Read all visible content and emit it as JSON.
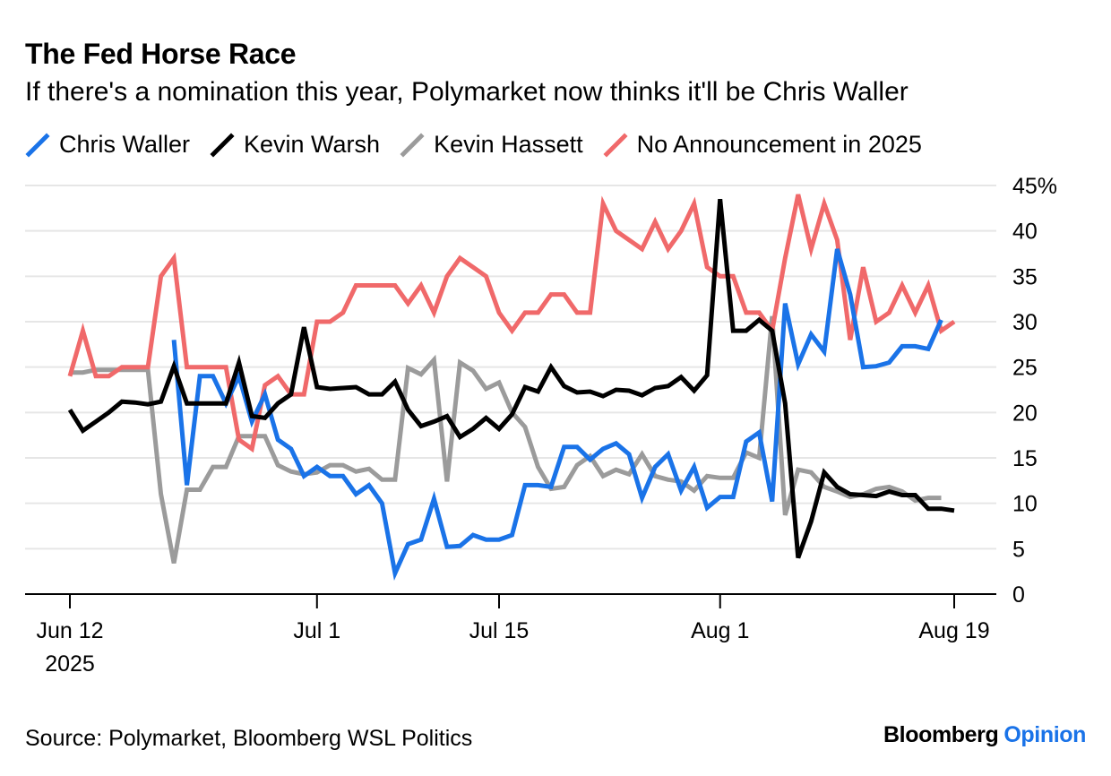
{
  "title": "The Fed Horse Race",
  "subtitle": "If there's a nomination this year, Polymarket now thinks it'll be Chris Waller",
  "source": "Source: Polymarket, Bloomberg WSL Politics",
  "brand": {
    "name": "Bloomberg",
    "section": "Opinion",
    "accent_color": "#1a73e8"
  },
  "chart_data": {
    "type": "line",
    "title": "The Fed Horse Race",
    "subtitle": "If there's a nomination this year, Polymarket now thinks it'll be Chris Waller",
    "xlabel": "",
    "ylabel": "",
    "ylim": [
      0,
      45
    ],
    "y_ticks": [
      {
        "value": 0,
        "label": "0"
      },
      {
        "value": 5,
        "label": "5"
      },
      {
        "value": 10,
        "label": "10"
      },
      {
        "value": 15,
        "label": "15"
      },
      {
        "value": 20,
        "label": "20"
      },
      {
        "value": 25,
        "label": "25"
      },
      {
        "value": 30,
        "label": "30"
      },
      {
        "value": 35,
        "label": "35"
      },
      {
        "value": 40,
        "label": "40"
      },
      {
        "value": 45,
        "label": "45%"
      }
    ],
    "y_axis_side": "right",
    "x_ticks": [
      {
        "label": "Jun 12",
        "label2": "2025",
        "date": "2025-06-12"
      },
      {
        "label": "Jul 1",
        "date": "2025-07-01"
      },
      {
        "label": "Jul 15",
        "date": "2025-07-15"
      },
      {
        "label": "Aug 1",
        "date": "2025-08-01"
      },
      {
        "label": "Aug 19",
        "date": "2025-08-19"
      }
    ],
    "x_range": [
      "2025-06-12",
      "2025-08-19"
    ],
    "grid": true,
    "legend_position": "top-left",
    "series": [
      {
        "name": "Chris Waller",
        "color": "#1a73e8",
        "points": [
          [
            "2025-06-20",
            28
          ],
          [
            "2025-06-21",
            12
          ],
          [
            "2025-06-22",
            24
          ],
          [
            "2025-06-23",
            24
          ],
          [
            "2025-06-24",
            21
          ],
          [
            "2025-06-25",
            24
          ],
          [
            "2025-06-26",
            19
          ],
          [
            "2025-06-27",
            22
          ],
          [
            "2025-06-28",
            17
          ],
          [
            "2025-06-29",
            16
          ],
          [
            "2025-06-30",
            13
          ],
          [
            "2025-07-01",
            14
          ],
          [
            "2025-07-02",
            13
          ],
          [
            "2025-07-03",
            13
          ],
          [
            "2025-07-04",
            11
          ],
          [
            "2025-07-05",
            12
          ],
          [
            "2025-07-06",
            10
          ],
          [
            "2025-07-07",
            2.3
          ],
          [
            "2025-07-08",
            5.5
          ],
          [
            "2025-07-09",
            6
          ],
          [
            "2025-07-10",
            10.5
          ],
          [
            "2025-07-11",
            5.2
          ],
          [
            "2025-07-12",
            5.3
          ],
          [
            "2025-07-13",
            6.5
          ],
          [
            "2025-07-14",
            6
          ],
          [
            "2025-07-15",
            6
          ],
          [
            "2025-07-16",
            6.5
          ],
          [
            "2025-07-17",
            12
          ],
          [
            "2025-07-18",
            12
          ],
          [
            "2025-07-19",
            11.8
          ],
          [
            "2025-07-20",
            16.2
          ],
          [
            "2025-07-21",
            16.2
          ],
          [
            "2025-07-22",
            14.8
          ],
          [
            "2025-07-23",
            16
          ],
          [
            "2025-07-24",
            16.6
          ],
          [
            "2025-07-25",
            15.4
          ],
          [
            "2025-07-26",
            10.6
          ],
          [
            "2025-07-27",
            14
          ],
          [
            "2025-07-28",
            15.4
          ],
          [
            "2025-07-29",
            11.4
          ],
          [
            "2025-07-30",
            14
          ],
          [
            "2025-07-31",
            9.5
          ],
          [
            "2025-08-01",
            10.7
          ],
          [
            "2025-08-02",
            10.7
          ],
          [
            "2025-08-03",
            16.8
          ],
          [
            "2025-08-04",
            17.8
          ],
          [
            "2025-08-05",
            10.2
          ],
          [
            "2025-08-06",
            32
          ],
          [
            "2025-08-07",
            25.3
          ],
          [
            "2025-08-08",
            28.6
          ],
          [
            "2025-08-09",
            26.7
          ],
          [
            "2025-08-10",
            38
          ],
          [
            "2025-08-11",
            33
          ],
          [
            "2025-08-12",
            25
          ],
          [
            "2025-08-13",
            25.1
          ],
          [
            "2025-08-14",
            25.5
          ],
          [
            "2025-08-15",
            27.3
          ],
          [
            "2025-08-16",
            27.3
          ],
          [
            "2025-08-17",
            27
          ],
          [
            "2025-08-18",
            30.2
          ]
        ]
      },
      {
        "name": "Kevin Warsh",
        "color": "#000000",
        "points": [
          [
            "2025-06-12",
            20.3
          ],
          [
            "2025-06-13",
            18
          ],
          [
            "2025-06-14",
            19
          ],
          [
            "2025-06-15",
            20
          ],
          [
            "2025-06-16",
            21.2
          ],
          [
            "2025-06-17",
            21.1
          ],
          [
            "2025-06-18",
            20.9
          ],
          [
            "2025-06-19",
            21.2
          ],
          [
            "2025-06-20",
            25.1
          ],
          [
            "2025-06-21",
            21
          ],
          [
            "2025-06-22",
            21
          ],
          [
            "2025-06-23",
            21
          ],
          [
            "2025-06-24",
            21
          ],
          [
            "2025-06-25",
            25.5
          ],
          [
            "2025-06-26",
            19.6
          ],
          [
            "2025-06-27",
            19.4
          ],
          [
            "2025-06-28",
            21
          ],
          [
            "2025-06-29",
            22
          ],
          [
            "2025-06-30",
            29.4
          ],
          [
            "2025-07-01",
            22.8
          ],
          [
            "2025-07-02",
            22.6
          ],
          [
            "2025-07-03",
            22.7
          ],
          [
            "2025-07-04",
            22.8
          ],
          [
            "2025-07-05",
            22
          ],
          [
            "2025-07-06",
            22
          ],
          [
            "2025-07-07",
            23.4
          ],
          [
            "2025-07-08",
            20.3
          ],
          [
            "2025-07-09",
            18.5
          ],
          [
            "2025-07-10",
            19
          ],
          [
            "2025-07-11",
            19.6
          ],
          [
            "2025-07-12",
            17.3
          ],
          [
            "2025-07-13",
            18.2
          ],
          [
            "2025-07-14",
            19.4
          ],
          [
            "2025-07-15",
            18.2
          ],
          [
            "2025-07-16",
            19.8
          ],
          [
            "2025-07-17",
            22.8
          ],
          [
            "2025-07-18",
            22.3
          ],
          [
            "2025-07-19",
            25
          ],
          [
            "2025-07-20",
            22.9
          ],
          [
            "2025-07-21",
            22.2
          ],
          [
            "2025-07-22",
            22.3
          ],
          [
            "2025-07-23",
            21.8
          ],
          [
            "2025-07-24",
            22.5
          ],
          [
            "2025-07-25",
            22.4
          ],
          [
            "2025-07-26",
            21.9
          ],
          [
            "2025-07-27",
            22.7
          ],
          [
            "2025-07-28",
            22.9
          ],
          [
            "2025-07-29",
            23.9
          ],
          [
            "2025-07-30",
            22.4
          ],
          [
            "2025-07-31",
            24.1
          ],
          [
            "2025-08-01",
            43.5
          ],
          [
            "2025-08-02",
            29
          ],
          [
            "2025-08-03",
            29
          ],
          [
            "2025-08-04",
            30.2
          ],
          [
            "2025-08-05",
            29
          ],
          [
            "2025-08-06",
            21
          ],
          [
            "2025-08-07",
            4
          ],
          [
            "2025-08-08",
            8
          ],
          [
            "2025-08-09",
            13.4
          ],
          [
            "2025-08-10",
            11.8
          ],
          [
            "2025-08-11",
            11
          ],
          [
            "2025-08-12",
            10.9
          ],
          [
            "2025-08-13",
            10.8
          ],
          [
            "2025-08-14",
            11.3
          ],
          [
            "2025-08-15",
            10.9
          ],
          [
            "2025-08-16",
            10.9
          ],
          [
            "2025-08-17",
            9.4
          ],
          [
            "2025-08-18",
            9.4
          ],
          [
            "2025-08-19",
            9.2
          ]
        ]
      },
      {
        "name": "Kevin Hassett",
        "color": "#9b9b9b",
        "points": [
          [
            "2025-06-12",
            24.4
          ],
          [
            "2025-06-13",
            24.4
          ],
          [
            "2025-06-14",
            24.7
          ],
          [
            "2025-06-15",
            24.7
          ],
          [
            "2025-06-16",
            24.7
          ],
          [
            "2025-06-17",
            24.7
          ],
          [
            "2025-06-18",
            24.7
          ],
          [
            "2025-06-19",
            11
          ],
          [
            "2025-06-20",
            3.4
          ],
          [
            "2025-06-21",
            11.5
          ],
          [
            "2025-06-22",
            11.5
          ],
          [
            "2025-06-23",
            14
          ],
          [
            "2025-06-24",
            14
          ],
          [
            "2025-06-25",
            17.4
          ],
          [
            "2025-06-26",
            17.4
          ],
          [
            "2025-06-27",
            17.4
          ],
          [
            "2025-06-28",
            14.2
          ],
          [
            "2025-06-29",
            13.5
          ],
          [
            "2025-06-30",
            13.2
          ],
          [
            "2025-07-01",
            13.4
          ],
          [
            "2025-07-02",
            14.2
          ],
          [
            "2025-07-03",
            14.2
          ],
          [
            "2025-07-04",
            13.5
          ],
          [
            "2025-07-05",
            13.8
          ],
          [
            "2025-07-06",
            12.6
          ],
          [
            "2025-07-07",
            12.6
          ],
          [
            "2025-07-08",
            24.9
          ],
          [
            "2025-07-09",
            24.2
          ],
          [
            "2025-07-10",
            25.8
          ],
          [
            "2025-07-11",
            12.4
          ],
          [
            "2025-07-12",
            25.5
          ],
          [
            "2025-07-13",
            24.6
          ],
          [
            "2025-07-14",
            22.6
          ],
          [
            "2025-07-15",
            23.3
          ],
          [
            "2025-07-16",
            20
          ],
          [
            "2025-07-17",
            18.4
          ],
          [
            "2025-07-18",
            14
          ],
          [
            "2025-07-19",
            11.6
          ],
          [
            "2025-07-20",
            11.8
          ],
          [
            "2025-07-21",
            14.2
          ],
          [
            "2025-07-22",
            15.2
          ],
          [
            "2025-07-23",
            13
          ],
          [
            "2025-07-24",
            13.7
          ],
          [
            "2025-07-25",
            13.2
          ],
          [
            "2025-07-26",
            15.4
          ],
          [
            "2025-07-27",
            13
          ],
          [
            "2025-07-28",
            12.6
          ],
          [
            "2025-07-29",
            12.4
          ],
          [
            "2025-07-30",
            11.4
          ],
          [
            "2025-07-31",
            13
          ],
          [
            "2025-08-01",
            12.8
          ],
          [
            "2025-08-02",
            12.8
          ],
          [
            "2025-08-03",
            15.6
          ],
          [
            "2025-08-04",
            15
          ],
          [
            "2025-08-05",
            30.6
          ],
          [
            "2025-08-06",
            8.7
          ],
          [
            "2025-08-07",
            13.7
          ],
          [
            "2025-08-08",
            13.4
          ],
          [
            "2025-08-09",
            11.8
          ],
          [
            "2025-08-10",
            11.3
          ],
          [
            "2025-08-11",
            10.7
          ],
          [
            "2025-08-12",
            11
          ],
          [
            "2025-08-13",
            11.6
          ],
          [
            "2025-08-14",
            11.8
          ],
          [
            "2025-08-15",
            11.3
          ],
          [
            "2025-08-16",
            10.3
          ],
          [
            "2025-08-17",
            10.6
          ],
          [
            "2025-08-18",
            10.6
          ]
        ]
      },
      {
        "name": "No Announcement in 2025",
        "color": "#f0696a",
        "points": [
          [
            "2025-06-12",
            24
          ],
          [
            "2025-06-13",
            29
          ],
          [
            "2025-06-14",
            24
          ],
          [
            "2025-06-15",
            24
          ],
          [
            "2025-06-16",
            25
          ],
          [
            "2025-06-17",
            25
          ],
          [
            "2025-06-18",
            25
          ],
          [
            "2025-06-19",
            35
          ],
          [
            "2025-06-20",
            37
          ],
          [
            "2025-06-21",
            25
          ],
          [
            "2025-06-22",
            25
          ],
          [
            "2025-06-23",
            25
          ],
          [
            "2025-06-24",
            25
          ],
          [
            "2025-06-25",
            17
          ],
          [
            "2025-06-26",
            16
          ],
          [
            "2025-06-27",
            23
          ],
          [
            "2025-06-28",
            24
          ],
          [
            "2025-06-29",
            22
          ],
          [
            "2025-06-30",
            22
          ],
          [
            "2025-07-01",
            30
          ],
          [
            "2025-07-02",
            30
          ],
          [
            "2025-07-03",
            31
          ],
          [
            "2025-07-04",
            34
          ],
          [
            "2025-07-05",
            34
          ],
          [
            "2025-07-06",
            34
          ],
          [
            "2025-07-07",
            34
          ],
          [
            "2025-07-08",
            32
          ],
          [
            "2025-07-09",
            34
          ],
          [
            "2025-07-10",
            31
          ],
          [
            "2025-07-11",
            35
          ],
          [
            "2025-07-12",
            37
          ],
          [
            "2025-07-13",
            36
          ],
          [
            "2025-07-14",
            35
          ],
          [
            "2025-07-15",
            31
          ],
          [
            "2025-07-16",
            29
          ],
          [
            "2025-07-17",
            31
          ],
          [
            "2025-07-18",
            31
          ],
          [
            "2025-07-19",
            33
          ],
          [
            "2025-07-20",
            33
          ],
          [
            "2025-07-21",
            31
          ],
          [
            "2025-07-22",
            31
          ],
          [
            "2025-07-23",
            43
          ],
          [
            "2025-07-24",
            40
          ],
          [
            "2025-07-25",
            39
          ],
          [
            "2025-07-26",
            38
          ],
          [
            "2025-07-27",
            41
          ],
          [
            "2025-07-28",
            38
          ],
          [
            "2025-07-29",
            40
          ],
          [
            "2025-07-30",
            43
          ],
          [
            "2025-07-31",
            36
          ],
          [
            "2025-08-01",
            35
          ],
          [
            "2025-08-02",
            35
          ],
          [
            "2025-08-03",
            31
          ],
          [
            "2025-08-04",
            31
          ],
          [
            "2025-08-05",
            29
          ],
          [
            "2025-08-06",
            37
          ],
          [
            "2025-08-07",
            44
          ],
          [
            "2025-08-08",
            38
          ],
          [
            "2025-08-09",
            43
          ],
          [
            "2025-08-10",
            39
          ],
          [
            "2025-08-11",
            28
          ],
          [
            "2025-08-12",
            36
          ],
          [
            "2025-08-13",
            30
          ],
          [
            "2025-08-14",
            31
          ],
          [
            "2025-08-15",
            34
          ],
          [
            "2025-08-16",
            31
          ],
          [
            "2025-08-17",
            34
          ],
          [
            "2025-08-18",
            29
          ],
          [
            "2025-08-19",
            30
          ]
        ]
      }
    ]
  }
}
